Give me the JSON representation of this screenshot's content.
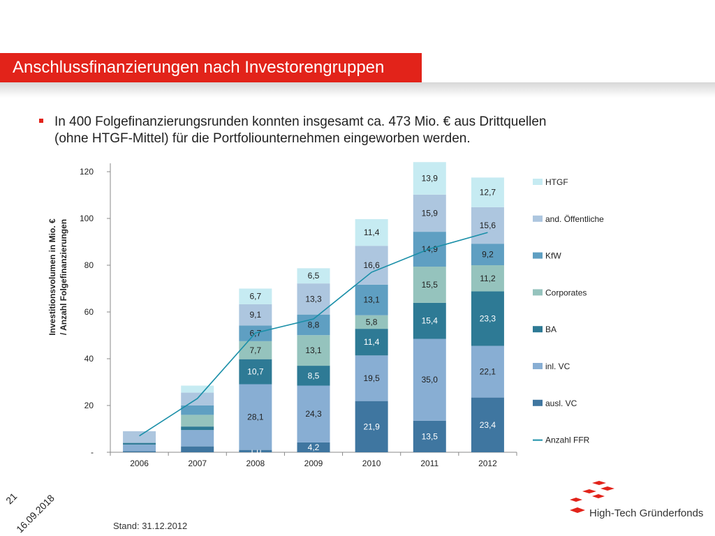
{
  "header": {
    "title": "Anschlussfinanzierungen nach Investorengruppen"
  },
  "bullet": {
    "line1": "In 400 Folgefinanzierungsrunden konnten insgesamt ca. 473 Mio. € aus Drittquellen",
    "line2": "(ohne HTGF-Mittel) für die Portfoliounternehmen eingeworben werden."
  },
  "footer": {
    "page_number": "21",
    "date": "16.09.2018",
    "stand": "Stand: 31.12.2012",
    "logo_text": "High-Tech Gründerfonds"
  },
  "chart_data": {
    "type": "bar",
    "stacked": true,
    "ylabel_line1": "Investitionsvolumen in Mio. €",
    "ylabel_line2": "/ Anzahl Folgefinanzierungen",
    "ylim": [
      0,
      120
    ],
    "yticks": [
      0,
      20,
      40,
      60,
      80,
      100,
      120
    ],
    "ytick_labels": [
      "-",
      "20",
      "40",
      "60",
      "80",
      "100",
      "120"
    ],
    "categories": [
      "2006",
      "2007",
      "2008",
      "2009",
      "2010",
      "2011",
      "2012"
    ],
    "series": [
      {
        "name": "ausl. VC",
        "color": "#3f76a0",
        "values": [
          0.5,
          2.5,
          1.0,
          4.2,
          21.9,
          13.5,
          23.4
        ],
        "labels": [
          "",
          "",
          "1,0",
          "4,2",
          "21,9",
          "13,5",
          "23,4"
        ]
      },
      {
        "name": "inl. VC",
        "color": "#88aed3",
        "values": [
          2.8,
          7.0,
          28.1,
          24.3,
          19.5,
          35.0,
          22.1
        ],
        "labels": [
          "",
          "",
          "28,1",
          "24,3",
          "19,5",
          "35,0",
          "22,1"
        ]
      },
      {
        "name": "BA",
        "color": "#2e7a95",
        "values": [
          0.7,
          1.5,
          10.7,
          8.5,
          11.4,
          15.4,
          23.3
        ],
        "labels": [
          "",
          "",
          "10,7",
          "8,5",
          "11,4",
          "15,4",
          "23,3"
        ]
      },
      {
        "name": "Corporates",
        "color": "#95c3bd",
        "values": [
          0.0,
          5.0,
          7.7,
          13.1,
          5.8,
          15.5,
          11.2
        ],
        "labels": [
          "",
          "",
          "7,7",
          "13,1",
          "5,8",
          "15,5",
          "11,2"
        ]
      },
      {
        "name": "KfW",
        "color": "#5f9fc2",
        "values": [
          0.0,
          4.0,
          6.7,
          8.8,
          13.1,
          14.9,
          9.2
        ],
        "labels": [
          "",
          "",
          "6,7",
          "8,8",
          "13,1",
          "14,9",
          "9,2"
        ]
      },
      {
        "name": "and. Öffentliche",
        "color": "#adc6df",
        "values": [
          5.0,
          5.5,
          9.1,
          13.3,
          16.6,
          15.9,
          15.6
        ],
        "labels": [
          "",
          "",
          "9,1",
          "13,3",
          "16,6",
          "15,9",
          "15,6"
        ]
      },
      {
        "name": "HTGF",
        "color": "#c6ebf2",
        "values": [
          0.0,
          3.0,
          6.7,
          6.5,
          11.4,
          13.9,
          12.7
        ],
        "labels": [
          "",
          "",
          "6,7",
          "6,5",
          "11,4",
          "13,9",
          "12,7"
        ]
      }
    ],
    "line_series": {
      "name": "Anzahl FFR",
      "color": "#1a8fa8",
      "values": [
        7,
        23,
        51,
        57,
        77,
        87,
        94
      ]
    },
    "legend_position": "right",
    "grid": false
  }
}
